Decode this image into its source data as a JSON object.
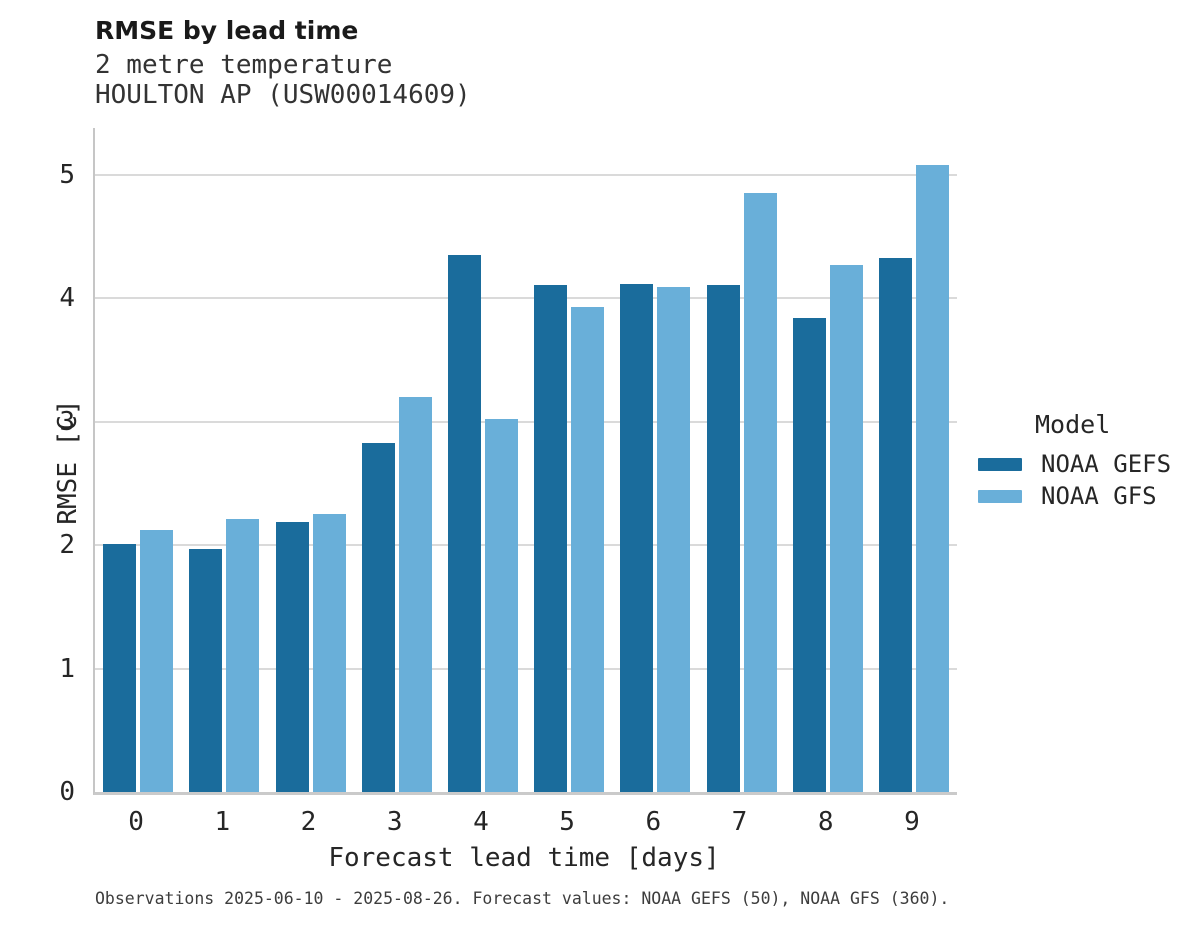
{
  "header": {
    "title": "RMSE by lead time",
    "subtitle1": "2 metre temperature",
    "subtitle2": "HOULTON AP (USW00014609)"
  },
  "chart_data": {
    "type": "bar",
    "title": "RMSE by lead time",
    "subtitle": [
      "2 metre temperature",
      "HOULTON AP (USW00014609)"
    ],
    "categories": [
      "0",
      "1",
      "2",
      "3",
      "4",
      "5",
      "6",
      "7",
      "8",
      "9"
    ],
    "series": [
      {
        "name": "NOAA GEFS",
        "color": "#1A6C9C",
        "values": [
          2.01,
          1.97,
          2.19,
          2.83,
          4.35,
          4.11,
          4.12,
          4.11,
          3.84,
          4.33
        ]
      },
      {
        "name": "NOAA GFS",
        "color": "#69AFD9",
        "values": [
          2.12,
          2.21,
          2.25,
          3.2,
          3.02,
          3.93,
          4.09,
          4.85,
          4.27,
          5.08
        ]
      }
    ],
    "xlabel": "Forecast lead time [days]",
    "ylabel": "RMSE [C]",
    "ylim": [
      0,
      5.38
    ],
    "yticks": [
      0,
      1,
      2,
      3,
      4,
      5
    ],
    "grid": true,
    "gridline_color": "#dadada",
    "legend_position": "right-of-plot"
  },
  "legend": {
    "title": "Model",
    "items": [
      {
        "label": "NOAA GEFS",
        "color": "#1A6C9C"
      },
      {
        "label": "NOAA GFS",
        "color": "#69AFD9"
      }
    ]
  },
  "footer": {
    "note": "Observations 2025-06-10 - 2025-08-26. Forecast values: NOAA GEFS (50), NOAA GFS (360)."
  }
}
